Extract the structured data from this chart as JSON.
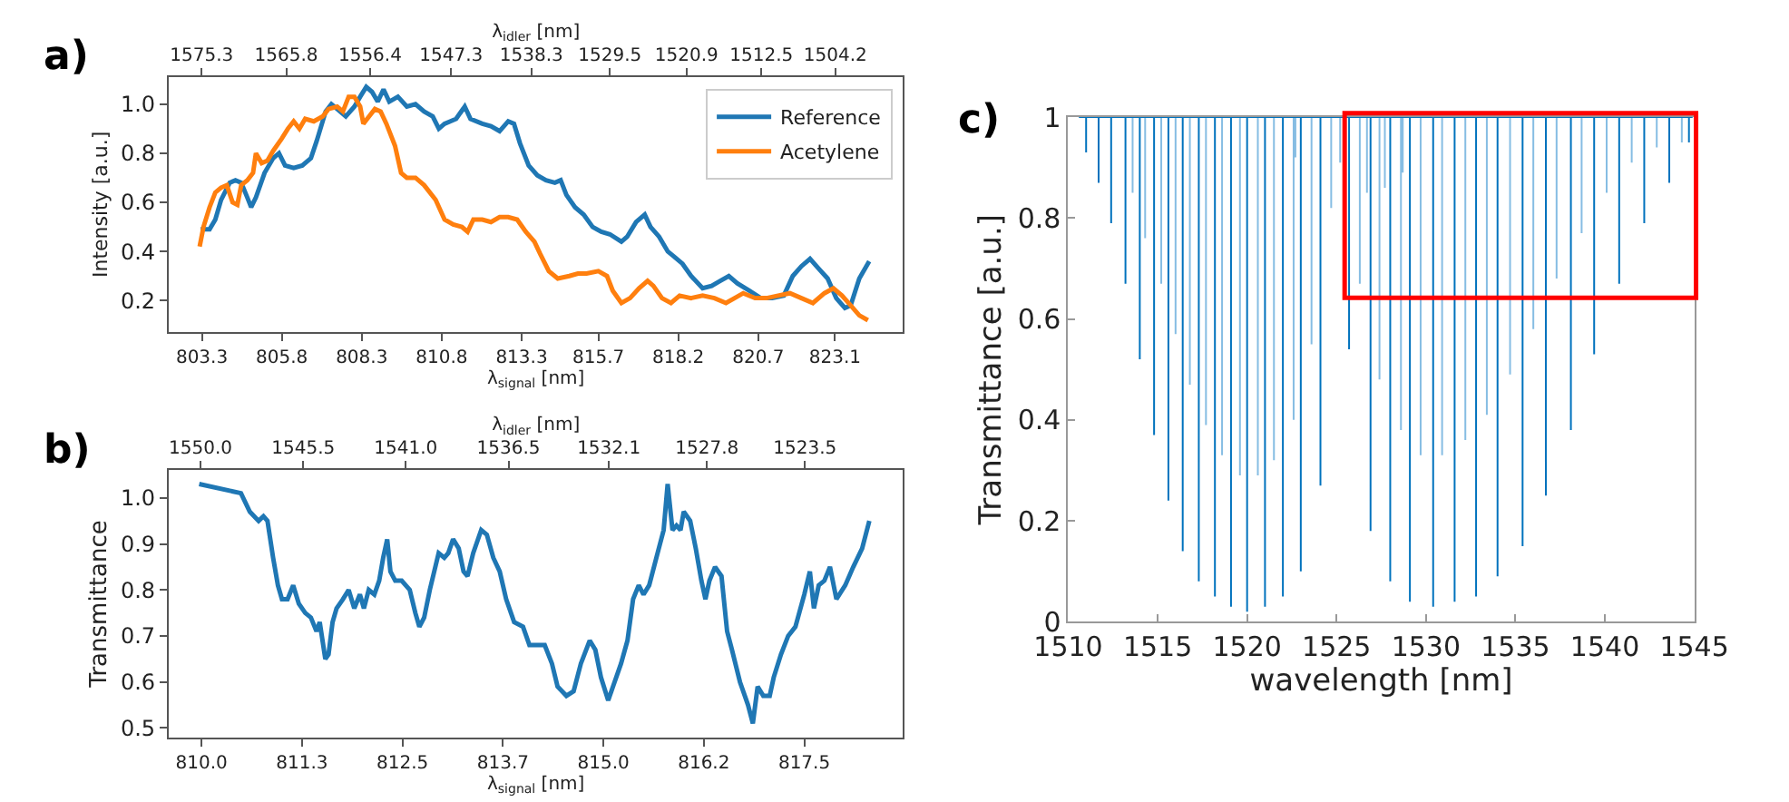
{
  "chart_data": [
    {
      "type": "line",
      "annotations": [
        "a)"
      ],
      "xlabel": "λ$_{signal}$ [nm]",
      "x2label": "λ$_{idler}$ [nm]",
      "ylabel": "Intensity [a.u.]",
      "legend": "top right",
      "xlim": [
        802.26,
        825.23
      ],
      "ylim": [
        0.073,
        1.11
      ],
      "xticks": [
        803.3,
        805.8,
        808.3,
        810.8,
        813.3,
        815.7,
        818.2,
        820.7,
        823.1
      ],
      "x2lim": [
        1579.0,
        1496.6
      ],
      "x2ticks": [
        1575.3,
        1565.8,
        1556.4,
        1547.3,
        1538.3,
        1529.5,
        1520.9,
        1512.5,
        1504.2
      ],
      "yticks": [
        0.2,
        0.4,
        0.6,
        0.8,
        {
          "value": 1.0,
          "label": "1.0"
        }
      ],
      "series": [
        {
          "name": "Reference",
          "color": "#1f77b4",
          "x": [
            803.26,
            803.54,
            803.72,
            803.9,
            804.17,
            804.35,
            804.53,
            804.72,
            804.84,
            804.99,
            805.26,
            805.53,
            805.71,
            805.9,
            806.17,
            806.44,
            806.71,
            806.89,
            807.17,
            807.35,
            807.53,
            807.8,
            808.07,
            808.25,
            808.44,
            808.62,
            808.8,
            808.98,
            809.16,
            809.43,
            809.71,
            809.98,
            810.25,
            810.52,
            810.71,
            810.89,
            811.07,
            811.25,
            811.52,
            811.7,
            812.07,
            812.34,
            812.61,
            812.88,
            813.06,
            813.25,
            813.52,
            813.79,
            814.06,
            814.34,
            814.52,
            814.7,
            814.97,
            815.24,
            815.52,
            815.79,
            816.06,
            816.42,
            816.6,
            816.88,
            817.15,
            817.33,
            817.6,
            817.87,
            818.06,
            818.33,
            818.6,
            818.96,
            819.24,
            819.51,
            819.78,
            820.05,
            820.42,
            820.78,
            821.14,
            821.5,
            821.78,
            822.05,
            822.32,
            822.59,
            822.87,
            823.14,
            823.41,
            823.59,
            823.86,
            824.17
          ],
          "values": [
            0.49,
            0.49,
            0.53,
            0.61,
            0.68,
            0.69,
            0.68,
            0.62,
            0.58,
            0.62,
            0.72,
            0.78,
            0.8,
            0.75,
            0.74,
            0.75,
            0.78,
            0.85,
            0.97,
            1.0,
            0.98,
            0.95,
            0.99,
            1.03,
            1.07,
            1.05,
            1.01,
            1.06,
            1.01,
            1.03,
            0.99,
            1.0,
            0.97,
            0.95,
            0.9,
            0.92,
            0.93,
            0.94,
            0.99,
            0.94,
            0.92,
            0.91,
            0.89,
            0.93,
            0.92,
            0.84,
            0.75,
            0.71,
            0.69,
            0.68,
            0.69,
            0.63,
            0.58,
            0.55,
            0.5,
            0.48,
            0.47,
            0.44,
            0.46,
            0.52,
            0.55,
            0.5,
            0.46,
            0.4,
            0.38,
            0.35,
            0.3,
            0.25,
            0.26,
            0.28,
            0.3,
            0.27,
            0.24,
            0.21,
            0.21,
            0.22,
            0.3,
            0.34,
            0.37,
            0.33,
            0.29,
            0.21,
            0.17,
            0.18,
            0.29,
            0.36
          ]
        },
        {
          "name": "Acetylene",
          "color": "#ff7f0e",
          "x": [
            803.23,
            803.35,
            803.54,
            803.72,
            803.9,
            804.08,
            804.26,
            804.41,
            804.53,
            804.72,
            804.9,
            804.99,
            805.17,
            805.35,
            805.53,
            805.8,
            805.99,
            806.17,
            806.35,
            806.53,
            806.8,
            807.08,
            807.26,
            807.53,
            807.71,
            807.89,
            808.07,
            808.25,
            808.35,
            808.53,
            808.71,
            808.89,
            809.07,
            809.34,
            809.53,
            809.71,
            809.98,
            810.25,
            810.61,
            810.89,
            811.16,
            811.43,
            811.61,
            811.79,
            812.07,
            812.34,
            812.61,
            812.88,
            813.16,
            813.43,
            813.7,
            813.88,
            814.15,
            814.43,
            814.79,
            815.06,
            815.33,
            815.7,
            815.97,
            816.15,
            816.42,
            816.69,
            816.97,
            817.24,
            817.42,
            817.69,
            817.97,
            818.24,
            818.6,
            818.96,
            819.33,
            819.69,
            819.96,
            820.23,
            820.6,
            820.96,
            821.32,
            821.69,
            822.05,
            822.41,
            822.77,
            823.05,
            823.32,
            823.59,
            823.86,
            824.13
          ],
          "values": [
            0.42,
            0.5,
            0.58,
            0.64,
            0.66,
            0.67,
            0.6,
            0.59,
            0.67,
            0.69,
            0.72,
            0.8,
            0.76,
            0.77,
            0.81,
            0.86,
            0.9,
            0.93,
            0.9,
            0.94,
            0.93,
            0.95,
            0.98,
            0.99,
            0.97,
            1.03,
            1.03,
            0.99,
            0.92,
            0.95,
            0.98,
            0.97,
            0.92,
            0.83,
            0.72,
            0.7,
            0.7,
            0.67,
            0.61,
            0.53,
            0.51,
            0.5,
            0.48,
            0.53,
            0.53,
            0.52,
            0.54,
            0.54,
            0.53,
            0.48,
            0.44,
            0.39,
            0.32,
            0.29,
            0.3,
            0.31,
            0.31,
            0.32,
            0.3,
            0.24,
            0.19,
            0.21,
            0.25,
            0.28,
            0.26,
            0.21,
            0.19,
            0.22,
            0.21,
            0.22,
            0.21,
            0.19,
            0.21,
            0.23,
            0.21,
            0.21,
            0.22,
            0.23,
            0.21,
            0.19,
            0.23,
            0.25,
            0.22,
            0.18,
            0.14,
            0.12
          ]
        }
      ]
    },
    {
      "type": "line",
      "annotations": [
        "b)"
      ],
      "xlabel": "λ$_{signal}$ [nm]",
      "x2label": "λ$_{idler}$ [nm]",
      "ylabel": "Transmittance",
      "xlim": [
        809.59,
        818.73
      ],
      "ylim": [
        0.48,
        1.06
      ],
      "xticks": [
        {
          "value": 810.0,
          "label": "810.0"
        },
        {
          "value": 811.25,
          "label": "811.3"
        },
        812.5,
        {
          "value": 813.75,
          "label": "813.7"
        },
        {
          "value": 815.0,
          "label": "815.0"
        },
        {
          "value": 816.25,
          "label": "816.2"
        },
        817.5
      ],
      "x2lim": [
        1551.4,
        1519.2
      ],
      "x2ticks": [
        {
          "value": 1550.0,
          "label": "1550.0"
        },
        1545.5,
        {
          "value": 1541.0,
          "label": "1541.0"
        },
        1536.5,
        1532.1,
        1527.8,
        1523.5
      ],
      "yticks": [
        0.5,
        0.6,
        0.7,
        0.8,
        0.9,
        {
          "value": 1.0,
          "label": "1.0"
        }
      ],
      "series": [
        {
          "color": "#1f77b4",
          "x": [
            809.97,
            810.49,
            810.6,
            810.71,
            810.77,
            810.82,
            810.89,
            810.95,
            811.0,
            811.07,
            811.14,
            811.21,
            811.29,
            811.36,
            811.43,
            811.47,
            811.54,
            811.58,
            811.63,
            811.68,
            811.76,
            811.83,
            811.9,
            811.97,
            812.02,
            812.08,
            812.15,
            812.21,
            812.26,
            812.31,
            812.35,
            812.41,
            812.49,
            812.59,
            812.66,
            812.71,
            812.77,
            812.84,
            812.95,
            813.02,
            813.07,
            813.13,
            813.2,
            813.26,
            813.31,
            813.38,
            813.48,
            813.55,
            813.63,
            813.71,
            813.79,
            813.89,
            814.0,
            814.08,
            814.18,
            814.27,
            814.36,
            814.43,
            814.54,
            814.63,
            814.72,
            814.83,
            814.9,
            814.97,
            815.06,
            815.12,
            815.22,
            815.3,
            815.37,
            815.44,
            815.5,
            815.57,
            815.66,
            815.75,
            815.8,
            815.86,
            815.91,
            815.96,
            816.0,
            816.08,
            816.15,
            816.22,
            816.27,
            816.32,
            816.39,
            816.47,
            816.54,
            816.6,
            816.7,
            816.8,
            816.86,
            816.92,
            816.99,
            817.07,
            817.12,
            817.21,
            817.3,
            817.39,
            817.5,
            817.57,
            817.62,
            817.68,
            817.75,
            817.82,
            817.9,
            818.01,
            818.11,
            818.22,
            818.31
          ],
          "values": [
            1.03,
            1.01,
            0.97,
            0.95,
            0.96,
            0.95,
            0.87,
            0.81,
            0.78,
            0.78,
            0.81,
            0.77,
            0.75,
            0.74,
            0.71,
            0.73,
            0.65,
            0.66,
            0.73,
            0.76,
            0.78,
            0.8,
            0.76,
            0.79,
            0.76,
            0.8,
            0.79,
            0.82,
            0.87,
            0.91,
            0.84,
            0.82,
            0.82,
            0.8,
            0.75,
            0.72,
            0.74,
            0.8,
            0.88,
            0.87,
            0.88,
            0.91,
            0.89,
            0.84,
            0.83,
            0.88,
            0.93,
            0.92,
            0.87,
            0.84,
            0.78,
            0.73,
            0.72,
            0.68,
            0.68,
            0.68,
            0.64,
            0.59,
            0.57,
            0.58,
            0.64,
            0.69,
            0.67,
            0.61,
            0.56,
            0.59,
            0.64,
            0.69,
            0.78,
            0.81,
            0.79,
            0.81,
            0.87,
            0.93,
            1.03,
            0.93,
            0.94,
            0.93,
            0.97,
            0.95,
            0.89,
            0.82,
            0.78,
            0.82,
            0.85,
            0.83,
            0.71,
            0.67,
            0.6,
            0.55,
            0.51,
            0.59,
            0.57,
            0.57,
            0.61,
            0.66,
            0.7,
            0.72,
            0.79,
            0.84,
            0.76,
            0.81,
            0.82,
            0.85,
            0.78,
            0.81,
            0.85,
            0.89,
            0.95
          ]
        }
      ]
    },
    {
      "type": "line",
      "annotations": [
        "c)"
      ],
      "xlabel": "wavelength [nm]",
      "ylabel": "Transmittance [a.u.]",
      "xlim": [
        1510,
        1545
      ],
      "ylim": [
        0,
        1
      ],
      "xticks": [
        1510,
        1515,
        1520,
        1525,
        1530,
        1535,
        1540,
        1545
      ],
      "yticks": [
        0,
        0.2,
        0.4,
        0.6,
        0.8,
        1
      ],
      "series": [
        {
          "color": "#86bde3",
          "x": [
            1510.6,
            1513.6,
            1513.6,
            1513.6,
            1514.3,
            1514.3,
            1514.3,
            1515.2,
            1515.2,
            1515.2,
            1516.0,
            1516.0,
            1516.0,
            1516.8,
            1516.8,
            1516.8,
            1517.7,
            1517.7,
            1517.7,
            1518.6,
            1518.6,
            1518.6,
            1519.6,
            1519.6,
            1519.6,
            1520.6,
            1520.6,
            1520.6,
            1521.5,
            1521.5,
            1521.5,
            1522.6,
            1522.6,
            1522.6,
            1522.7,
            1522.7,
            1522.7,
            1523.6,
            1523.6,
            1523.6,
            1524.7,
            1524.7,
            1524.7,
            1525.2,
            1525.2,
            1525.2,
            1526.3,
            1526.3,
            1526.3,
            1526.7,
            1526.7,
            1526.7,
            1527.4,
            1527.4,
            1527.4,
            1527.7,
            1527.7,
            1527.7,
            1528.6,
            1528.6,
            1528.6,
            1528.7,
            1528.7,
            1528.7,
            1529.7,
            1529.7,
            1529.7,
            1530.9,
            1530.9,
            1530.9,
            1532.2,
            1532.2,
            1532.2,
            1533.4,
            1533.4,
            1533.4,
            1534.7,
            1534.7,
            1534.7,
            1536.0,
            1536.0,
            1536.0,
            1537.3,
            1537.3,
            1537.3,
            1538.7,
            1538.7,
            1538.7,
            1540.1,
            1540.1,
            1540.1,
            1541.5,
            1541.5,
            1541.5,
            1542.9,
            1542.9,
            1542.9,
            1544.3,
            1544.3,
            1544.3,
            1544.9
          ],
          "values": [
            1,
            1,
            0.85,
            1,
            1,
            0.76,
            1,
            1,
            0.67,
            1,
            1,
            0.57,
            1,
            1,
            0.47,
            1,
            1,
            0.39,
            1,
            1,
            0.33,
            1,
            1,
            0.29,
            1,
            1,
            0.29,
            1,
            1,
            0.32,
            1,
            1,
            0.4,
            1,
            1,
            0.92,
            1,
            1,
            0.55,
            1,
            1,
            0.82,
            1,
            1,
            0.91,
            1,
            1,
            0.67,
            1,
            1,
            0.85,
            1,
            1,
            0.48,
            1,
            1,
            0.86,
            1,
            1,
            0.38,
            1,
            1,
            0.89,
            1,
            1,
            0.33,
            1,
            1,
            0.33,
            1,
            1,
            0.36,
            1,
            1,
            0.41,
            1,
            1,
            0.49,
            1,
            1,
            0.58,
            1,
            1,
            0.68,
            1,
            1,
            0.77,
            1,
            1,
            0.85,
            1,
            1,
            0.91,
            1,
            1,
            0.94,
            1,
            1,
            0.95,
            1,
            1
          ]
        },
        {
          "color": "#0072bd",
          "x": [
            1510.6,
            1511.0,
            1511.0,
            1511.0,
            1511.7,
            1511.7,
            1511.7,
            1512.4,
            1512.4,
            1512.4,
            1513.2,
            1513.2,
            1513.2,
            1514.0,
            1514.0,
            1514.0,
            1514.8,
            1514.8,
            1514.8,
            1515.6,
            1515.6,
            1515.6,
            1516.4,
            1516.4,
            1516.4,
            1517.3,
            1517.3,
            1517.3,
            1518.2,
            1518.2,
            1518.2,
            1519.1,
            1519.1,
            1519.1,
            1520.0,
            1520.0,
            1520.0,
            1521.0,
            1521.0,
            1521.0,
            1522.0,
            1522.0,
            1522.0,
            1523.0,
            1523.0,
            1523.0,
            1524.1,
            1524.1,
            1524.1,
            1525.7,
            1525.7,
            1525.7,
            1526.9,
            1526.9,
            1526.9,
            1528.0,
            1528.0,
            1528.0,
            1529.1,
            1529.1,
            1529.1,
            1530.4,
            1530.4,
            1530.4,
            1531.6,
            1531.6,
            1531.6,
            1532.8,
            1532.8,
            1532.8,
            1534.0,
            1534.0,
            1534.0,
            1535.4,
            1535.4,
            1535.4,
            1536.7,
            1536.7,
            1536.7,
            1538.1,
            1538.1,
            1538.1,
            1539.4,
            1539.4,
            1539.4,
            1540.8,
            1540.8,
            1540.8,
            1542.2,
            1542.2,
            1542.2,
            1543.6,
            1543.6,
            1543.6,
            1544.7,
            1544.7,
            1544.7,
            1544.9
          ],
          "values": [
            1,
            1,
            0.93,
            1,
            1,
            0.87,
            1,
            1,
            0.79,
            1,
            1,
            0.67,
            1,
            1,
            0.52,
            1,
            1,
            0.37,
            1,
            1,
            0.24,
            1,
            1,
            0.14,
            1,
            1,
            0.08,
            1,
            1,
            0.05,
            1,
            1,
            0.03,
            1,
            1,
            0.02,
            1,
            1,
            0.03,
            1,
            1,
            0.05,
            1,
            1,
            0.1,
            1,
            1,
            0.27,
            1,
            1,
            0.54,
            1,
            1,
            0.18,
            1,
            1,
            0.08,
            1,
            1,
            0.04,
            1,
            1,
            0.03,
            1,
            1,
            0.04,
            1,
            1,
            0.05,
            1,
            1,
            0.09,
            1,
            1,
            0.15,
            1,
            1,
            0.25,
            1,
            1,
            0.38,
            1,
            1,
            0.53,
            1,
            1,
            0.67,
            1,
            1,
            0.79,
            1,
            1,
            0.87,
            1,
            1,
            0.95,
            1,
            1
          ]
        }
      ]
    }
  ]
}
